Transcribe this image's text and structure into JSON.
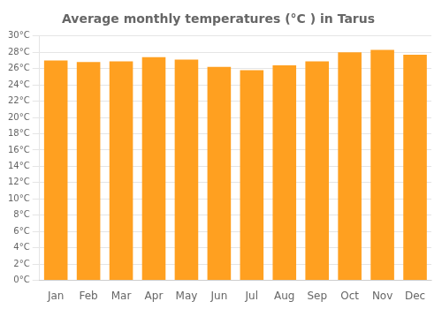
{
  "chart_data": {
    "type": "bar",
    "title": "Average monthly temperatures (°C ) in Tarus",
    "categories": [
      "Jan",
      "Feb",
      "Mar",
      "Apr",
      "May",
      "Jun",
      "Jul",
      "Aug",
      "Sep",
      "Oct",
      "Nov",
      "Dec"
    ],
    "values": [
      27.0,
      26.8,
      26.9,
      27.4,
      27.1,
      26.2,
      25.8,
      26.4,
      26.9,
      28.0,
      28.3,
      27.7
    ],
    "color": "#FFA020",
    "ylim": [
      0,
      30
    ],
    "yticks": [
      {
        "value": 0,
        "label": "0°C"
      },
      {
        "value": 2,
        "label": "2°C"
      },
      {
        "value": 4,
        "label": "4°C"
      },
      {
        "value": 6,
        "label": "6°C"
      },
      {
        "value": 8,
        "label": "8°C"
      },
      {
        "value": 10,
        "label": "10°C"
      },
      {
        "value": 12,
        "label": "12°C"
      },
      {
        "value": 14,
        "label": "14°C"
      },
      {
        "value": 16,
        "label": "16°C"
      },
      {
        "value": 18,
        "label": "18°C"
      },
      {
        "value": 20,
        "label": "20°C"
      },
      {
        "value": 22,
        "label": "22°C"
      },
      {
        "value": 24,
        "label": "24°C"
      },
      {
        "value": 26,
        "label": "26°C"
      },
      {
        "value": 28,
        "label": "28°C"
      },
      {
        "value": 30,
        "label": "30°C"
      }
    ],
    "grid": true
  }
}
